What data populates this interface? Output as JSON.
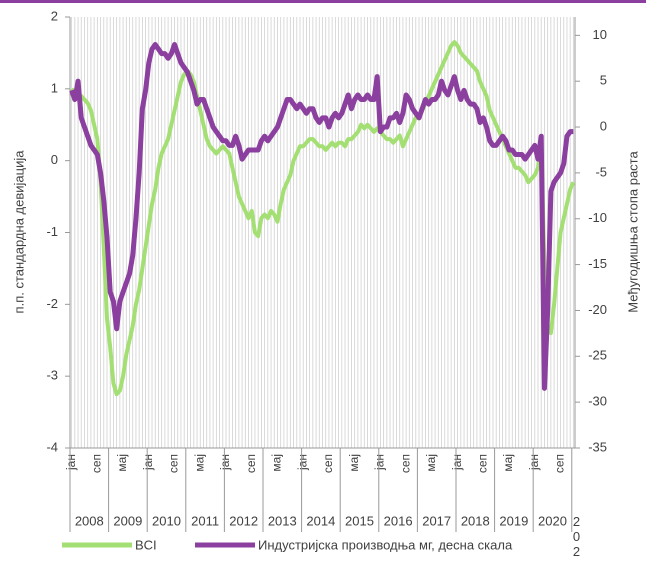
{
  "chart_data": {
    "type": "line",
    "y_label": "п.п. стандардна девијација",
    "y2_label": "Међугодишња стопа раста",
    "categories": [
      "јан",
      null,
      null,
      null,
      null,
      null,
      null,
      null,
      "сеп",
      null,
      null,
      null,
      null,
      null,
      null,
      null,
      "мај",
      null,
      null,
      null,
      null,
      null,
      null,
      null,
      "јан",
      null,
      null,
      null,
      null,
      null,
      null,
      null,
      "сеп",
      null,
      null,
      null,
      null,
      null,
      null,
      null,
      "мај",
      null,
      null,
      null,
      null,
      null,
      null,
      null,
      "јан",
      null,
      null,
      null,
      null,
      null,
      null,
      null,
      "сеп",
      null,
      null,
      null,
      null,
      null,
      null,
      null,
      "мај",
      null,
      null,
      null,
      null,
      null,
      null,
      null,
      "јан",
      null,
      null,
      null,
      null,
      null,
      null,
      null,
      "сеп",
      null,
      null,
      null,
      null,
      null,
      null,
      null,
      "мај",
      null,
      null,
      null,
      null,
      null,
      null,
      null,
      "јан",
      null,
      null,
      null,
      null,
      null,
      null,
      null,
      "сеп",
      null,
      null,
      null,
      null,
      null,
      null,
      null,
      "мај",
      null,
      null,
      null,
      null,
      null,
      null,
      null,
      "јан",
      null,
      null,
      null,
      null,
      null,
      null,
      null,
      "сеп",
      null,
      null,
      null,
      null,
      null,
      null,
      null,
      "мај",
      null,
      null,
      null,
      null,
      null,
      null,
      null,
      "јан",
      null,
      null,
      null,
      null,
      null,
      null,
      null,
      "сеп",
      null,
      null,
      null,
      null
    ],
    "year_labels": [
      "2008",
      "2009",
      "2010",
      "2011",
      "2012",
      "2013",
      "2014",
      "2015",
      "2016",
      "2017",
      "2018",
      "2019",
      "2020",
      "202"
    ],
    "series": [
      {
        "name": "BCI",
        "color": "#a3df72",
        "axis": "y",
        "values": [
          1.0,
          0.95,
          0.9,
          0.9,
          0.85,
          0.8,
          0.7,
          0.5,
          0.3,
          -0.3,
          -1.2,
          -2.2,
          -2.6,
          -3.1,
          -3.25,
          -3.2,
          -3.0,
          -2.7,
          -2.5,
          -2.3,
          -2.0,
          -1.8,
          -1.5,
          -1.2,
          -0.9,
          -0.6,
          -0.4,
          -0.1,
          0.1,
          0.2,
          0.3,
          0.5,
          0.7,
          0.9,
          1.1,
          1.2,
          1.25,
          1.2,
          1.1,
          0.9,
          0.7,
          0.5,
          0.3,
          0.2,
          0.15,
          0.1,
          0.15,
          0.2,
          0.15,
          0.1,
          -0.1,
          -0.3,
          -0.5,
          -0.6,
          -0.7,
          -0.8,
          -0.7,
          -1.0,
          -1.05,
          -0.8,
          -0.75,
          -0.8,
          -0.7,
          -0.75,
          -0.85,
          -0.6,
          -0.4,
          -0.3,
          -0.2,
          0.0,
          0.1,
          0.2,
          0.2,
          0.25,
          0.3,
          0.3,
          0.25,
          0.2,
          0.2,
          0.15,
          0.2,
          0.25,
          0.2,
          0.25,
          0.25,
          0.2,
          0.3,
          0.3,
          0.35,
          0.4,
          0.5,
          0.45,
          0.5,
          0.45,
          0.4,
          0.45,
          0.4,
          0.35,
          0.3,
          0.3,
          0.25,
          0.3,
          0.35,
          0.2,
          0.3,
          0.4,
          0.5,
          0.6,
          0.6,
          0.7,
          0.8,
          0.9,
          1.0,
          1.1,
          1.2,
          1.3,
          1.4,
          1.5,
          1.6,
          1.65,
          1.6,
          1.5,
          1.45,
          1.4,
          1.35,
          1.3,
          1.25,
          1.1,
          1.0,
          0.9,
          0.7,
          0.6,
          0.5,
          0.4,
          0.3,
          0.2,
          0.1,
          0.0,
          -0.1,
          -0.1,
          -0.15,
          -0.2,
          -0.3,
          -0.25,
          -0.2,
          -0.1,
          0.3,
          -1.5,
          -2.3,
          -2.4,
          -2.0,
          -1.5,
          -1.0,
          -0.8,
          -0.6,
          -0.4,
          -0.3
        ]
      },
      {
        "name": "Индустријска производња мг, десна скала",
        "color": "#8b3f9e",
        "axis": "y2",
        "values": [
          4,
          3,
          5,
          1,
          0,
          -1,
          -2,
          -2.5,
          -3,
          -5,
          -8,
          -12,
          -18,
          -19,
          -22,
          -19,
          -18,
          -17,
          -16,
          -14,
          -10,
          -5,
          2,
          4,
          7,
          8.5,
          9,
          8.5,
          8,
          8,
          7.5,
          8,
          9,
          8,
          7,
          6.5,
          6,
          5,
          4,
          2.5,
          3,
          3,
          2,
          1,
          0,
          -0.5,
          -1,
          -1.5,
          -1.5,
          -2,
          -2,
          -1,
          -2,
          -3.5,
          -3,
          -2.5,
          -2.5,
          -2.5,
          -2.5,
          -1.5,
          -1,
          -1.5,
          -1,
          -0.5,
          0,
          1,
          2,
          3,
          3,
          2.5,
          2,
          2.5,
          2,
          1.5,
          2,
          2,
          1,
          0.5,
          1,
          1,
          0,
          1,
          1.5,
          1,
          1.5,
          2.5,
          3.5,
          2,
          3,
          3.5,
          3,
          3,
          3.5,
          3,
          3,
          5.5,
          -0.5,
          0,
          0,
          1,
          1,
          1.5,
          0.5,
          1.5,
          3.5,
          3,
          2,
          1.5,
          1,
          2,
          3,
          2.5,
          3,
          3,
          3.5,
          5,
          4,
          3.5,
          4.5,
          5.5,
          4,
          3,
          4,
          3,
          2.5,
          2.5,
          2,
          0.5,
          1,
          0,
          -1.5,
          -2,
          -2,
          -1.5,
          -1,
          -1.5,
          -2.5,
          -2.5,
          -3,
          -3,
          -3,
          -3.5,
          -3,
          -2.5,
          -2,
          -3.5,
          -1,
          -28.5,
          -20,
          -7,
          -6,
          -5.5,
          -5,
          -4,
          -1,
          -0.5,
          -0.5
        ]
      }
    ],
    "ylim": [
      -4,
      2
    ],
    "yticks": [
      -4,
      -3,
      -2,
      -1,
      0,
      1,
      2
    ],
    "y2lim": [
      -35,
      12
    ],
    "y2ticks": [
      -35,
      -30,
      -25,
      -20,
      -15,
      -10,
      -5,
      0,
      5,
      10
    ],
    "grid": true,
    "legend": "bottom"
  }
}
